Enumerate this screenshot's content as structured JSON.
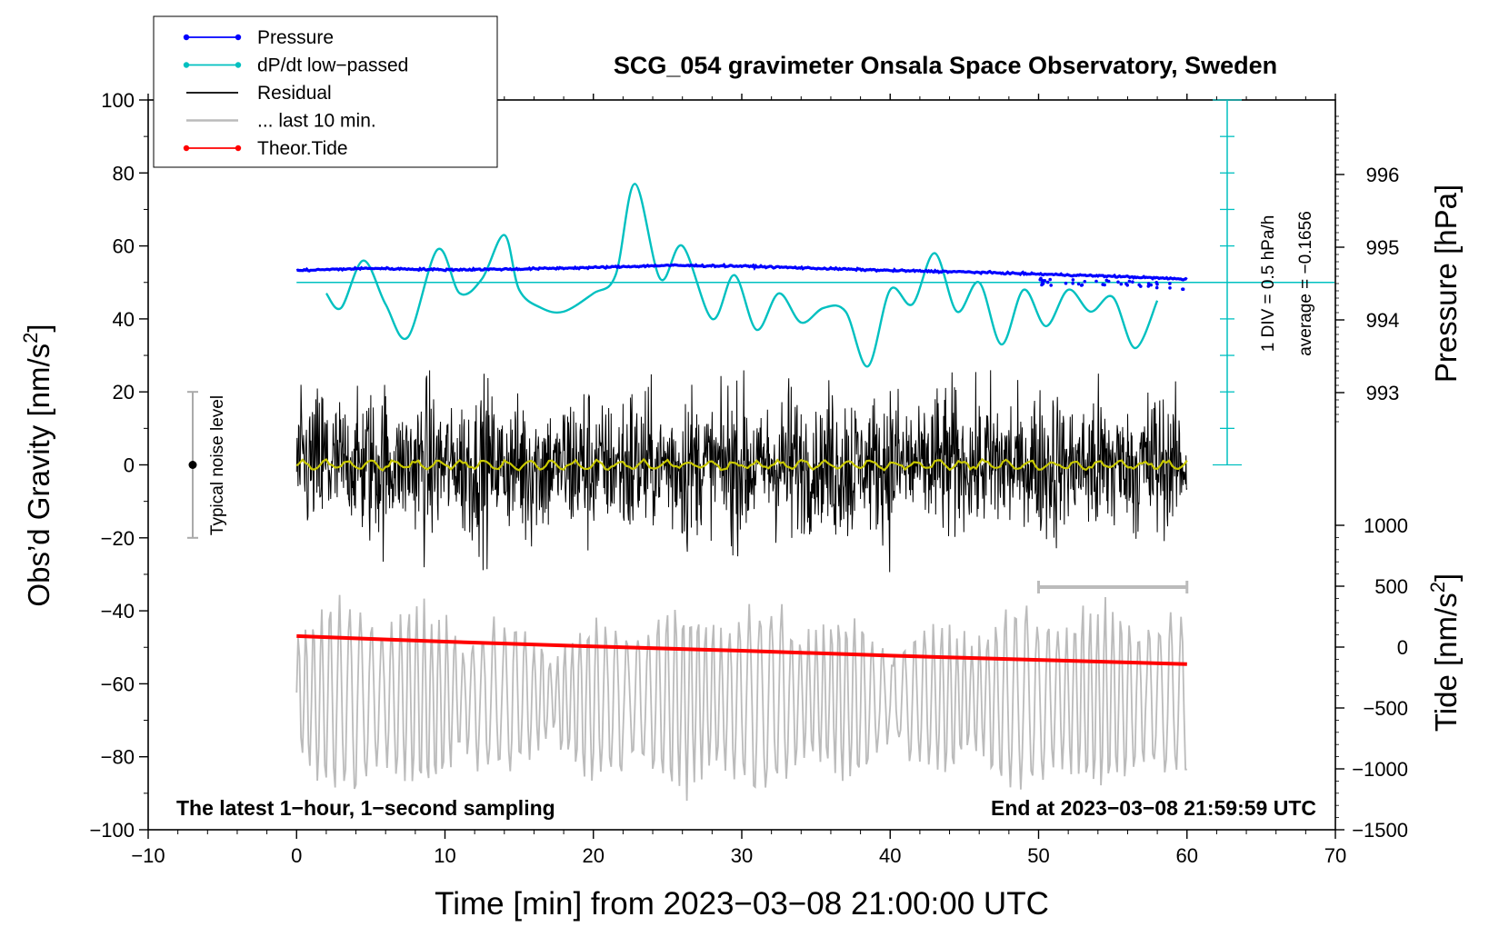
{
  "chart_data": {
    "type": "line",
    "title": "SCG_054 gravimeter Onsala Space Observatory, Sweden",
    "xlabel": "Time [min] from 2023−03−08 21:00:00 UTC",
    "ylabel_left": "Obs’d Gravity [nm/s",
    "ylabel_left_sup": "2",
    "ylabel_left_end": "]",
    "ylabel_right_pressure": "Pressure [hPa]",
    "ylabel_right_tide": "Tide [nm/s",
    "ylabel_right_tide_sup": "2",
    "ylabel_right_tide_end": "]",
    "xlim": [
      -10,
      70
    ],
    "ylim": [
      -100,
      100
    ],
    "x_ticks": [
      -10,
      0,
      10,
      20,
      30,
      40,
      50,
      60,
      70
    ],
    "x_tick_labels": [
      "−10",
      "0",
      "10",
      "20",
      "30",
      "40",
      "50",
      "60",
      "70"
    ],
    "y_ticks": [
      -100,
      -80,
      -60,
      -40,
      -20,
      0,
      20,
      40,
      60,
      80,
      100
    ],
    "y_tick_labels": [
      "−100",
      "−80",
      "−60",
      "−40",
      "−20",
      "0",
      "20",
      "40",
      "60",
      "80",
      "100"
    ],
    "pressure_axis": {
      "ticks": [
        993,
        994,
        995,
        996
      ],
      "tick_labels": [
        "993",
        "994",
        "995",
        "996"
      ]
    },
    "tide_axis": {
      "ticks": [
        -1500,
        -1000,
        -500,
        0,
        500,
        1000
      ],
      "tick_labels": [
        "−1500",
        "−1000",
        "−500",
        "0",
        "500",
        "1000"
      ]
    },
    "legend": {
      "placement": "top-left",
      "entries": [
        {
          "label": "Pressure",
          "color": "#0000ff",
          "marker": "dot"
        },
        {
          "label": "dP/dt low−passed",
          "color": "#00c0c0",
          "marker": "dot"
        },
        {
          "label": "Residual",
          "color": "#000000",
          "marker": "none"
        },
        {
          "label": "... last 10 min.",
          "color": "#bbbbbb",
          "marker": "none"
        },
        {
          "label": "Theor.Tide",
          "color": "#ff0000",
          "marker": "dot"
        }
      ]
    },
    "annotations": {
      "noise_label": "Typical noise level",
      "noise_range": [
        -20,
        20
      ],
      "dpdt_scale": "1 DIV = 0.5 hPa/h",
      "dpdt_average": "average = −0.1656",
      "bottom_left": "The latest 1−hour, 1−second sampling",
      "bottom_right": "End at 2023−03−08 21:59:59 UTC",
      "last10_bracket": [
        50,
        60
      ]
    },
    "series": [
      {
        "name": "Pressure",
        "color": "#0000ff",
        "axis": "pressure",
        "x": [
          0,
          5,
          10,
          15,
          20,
          25,
          30,
          35,
          40,
          45,
          50,
          55,
          60
        ],
        "values": [
          994.68,
          994.71,
          994.69,
          994.7,
          994.72,
          994.75,
          994.74,
          994.71,
          994.68,
          994.66,
          994.63,
          994.6,
          994.56
        ]
      },
      {
        "name": "dP/dt low−passed",
        "color": "#00c0c0",
        "axis": "gravity_equivalent",
        "x": [
          2,
          3,
          4.5,
          6,
          7.5,
          9.5,
          11,
          12.5,
          14,
          15,
          16.5,
          18,
          20,
          21.5,
          22.8,
          24.5,
          26,
          28,
          29.5,
          31,
          32.5,
          34,
          35.5,
          37,
          38.5,
          40,
          41.5,
          43,
          44.5,
          46,
          47.5,
          49,
          50.5,
          52,
          53.5,
          55,
          56.5,
          58
        ],
        "values": [
          47,
          43,
          56,
          44,
          35,
          59,
          47,
          51,
          63,
          48,
          43,
          42,
          47,
          52,
          77,
          51,
          60,
          40,
          52,
          37,
          47,
          39,
          43,
          42,
          27,
          48,
          44,
          58,
          42,
          50,
          33,
          48,
          38,
          48,
          42,
          46,
          32,
          45
        ]
      },
      {
        "name": "Residual",
        "color": "#000000",
        "axis": "gravity",
        "x_range": [
          0,
          60
        ],
        "center": 0,
        "typical_amplitude": 20,
        "max_excursion": 40
      },
      {
        "name": "Residual (low−passed)",
        "color": "#c8c800",
        "axis": "gravity",
        "x_range": [
          0,
          60
        ],
        "center": 0,
        "typical_amplitude": 1.5
      },
      {
        "name": "... last 10 min.",
        "color": "#bbbbbb",
        "axis": "gravity",
        "x_range": [
          0,
          60
        ],
        "center": -64,
        "typical_amplitude": 14,
        "max_excursion": 50
      },
      {
        "name": "Theor.Tide",
        "color": "#ff0000",
        "axis": "tide",
        "x": [
          0,
          10,
          20,
          30,
          40,
          50,
          60
        ],
        "values": [
          90,
          45,
          5,
          -30,
          -70,
          -105,
          -140
        ]
      }
    ]
  }
}
